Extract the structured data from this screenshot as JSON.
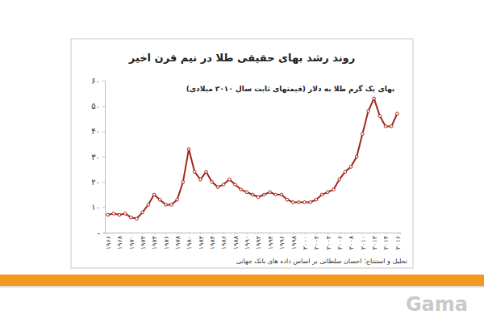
{
  "chart_data": {
    "type": "line",
    "title": "روند رشد بهای حقیقی طلا در نیم قرن اخیر",
    "subtitle": "بهای یک گرم طلا به دلار (قیمتهای ثابت سال ۲۰۱۰ میلادی)",
    "annotations": [
      "تحلیل و استنتاج: احسان سلطانی بر اساس داده های بانک جهانی"
    ],
    "categories": [
      "۱۹۶۶",
      null,
      "۱۹۶۸",
      null,
      "۱۹۷۰",
      null,
      "۱۹۷۲",
      null,
      "۱۹۷۴",
      null,
      "۱۹۷۶",
      null,
      "۱۹۷۸",
      null,
      "۱۹۸۰",
      null,
      "۱۹۸۲",
      null,
      "۱۹۸۴",
      null,
      "۱۹۸۶",
      null,
      "۱۹۸۸",
      null,
      "۱۹۹۰",
      null,
      "۱۹۹۲",
      null,
      "۱۹۹۴",
      null,
      "۱۹۹۶",
      null,
      "۱۹۹۸",
      null,
      "۲۰۰۰",
      null,
      "۲۰۰۲",
      null,
      "۲۰۰۴",
      null,
      "۲۰۰۶",
      null,
      "۲۰۰۸",
      null,
      "۲۰۱۰",
      null,
      "۲۰۱۲",
      null,
      "۲۰۱۴",
      null,
      "۲۰۱۶"
    ],
    "values": [
      7,
      7.5,
      7,
      7.5,
      6,
      5.5,
      8,
      11,
      15,
      13,
      11,
      11,
      13,
      20,
      33,
      24,
      21,
      24,
      20,
      18,
      19,
      21,
      19,
      17,
      16,
      15,
      14,
      15,
      16,
      15,
      15,
      13,
      12,
      12,
      12,
      12,
      13,
      15,
      16,
      17,
      21,
      24,
      26,
      30,
      39,
      48,
      53,
      46,
      42,
      42,
      47
    ],
    "color": "#a3261b",
    "marker": "circle",
    "line_style": "solid",
    "ylim": [
      0,
      60
    ],
    "yticks": [
      {
        "value": 0,
        "label": "-"
      },
      {
        "value": 10,
        "label": "۱۰"
      },
      {
        "value": 20,
        "label": "۲۰"
      },
      {
        "value": 30,
        "label": "۳۰"
      },
      {
        "value": 40,
        "label": "۴۰"
      },
      {
        "value": 50,
        "label": "۵۰"
      },
      {
        "value": 60,
        "label": "۶۰"
      }
    ],
    "grid": false
  },
  "footer": {
    "logo": "Gama"
  }
}
